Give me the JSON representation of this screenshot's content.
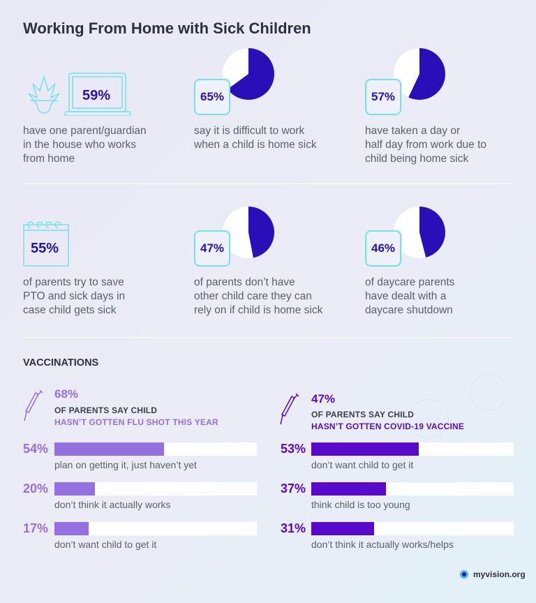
{
  "title": "Working From Home with Sick Children",
  "colors": {
    "pie_dark": "#2a0fb8",
    "flu_accent": "#9470e0",
    "covid_accent": "#5a09cc",
    "icon_outline": "#6fe3ec"
  },
  "stats": [
    {
      "value": "59%",
      "icon": "laptop-plant-icon",
      "text": [
        "have one parent/guardian",
        "in the house who works",
        "from home"
      ]
    },
    {
      "value": "65%",
      "icon": "pie-chart",
      "fraction": 0.65,
      "text": [
        "say it is difficult to work",
        "when a child is home sick"
      ]
    },
    {
      "value": "57%",
      "icon": "pie-chart",
      "fraction": 0.57,
      "text": [
        "have taken a day or",
        "half day from work due to",
        "child being home sick"
      ]
    },
    {
      "value": "55%",
      "icon": "calendar-icon",
      "text": [
        "of parents try to save",
        "PTO and sick days in",
        "case child gets sick"
      ]
    },
    {
      "value": "47%",
      "icon": "pie-chart",
      "fraction": 0.47,
      "text": [
        "of parents don’t have",
        "other child care they can",
        "rely on if child is home sick"
      ]
    },
    {
      "value": "46%",
      "icon": "pie-chart",
      "fraction": 0.46,
      "text": [
        "of daycare parents",
        "have dealt with a",
        "daycare shutdown"
      ]
    }
  ],
  "vaccinations": {
    "heading": "VACCINATIONS",
    "flu": {
      "value": "68%",
      "line1": "OF PARENTS SAY CHILD",
      "line2": "HASN’T GOTTEN FLU SHOT THIS YEAR",
      "bars": [
        {
          "value": "54%",
          "fraction": 0.54,
          "label": "plan on getting it, just haven’t yet"
        },
        {
          "value": "20%",
          "fraction": 0.2,
          "label": "don’t think it actually works"
        },
        {
          "value": "17%",
          "fraction": 0.17,
          "label": "don’t want child to get it"
        }
      ]
    },
    "covid": {
      "value": "47%",
      "line1": "OF PARENTS SAY CHILD",
      "line2": "HASN’T GOTTEN COVID-19 VACCINE",
      "bars": [
        {
          "value": "53%",
          "fraction": 0.53,
          "label": "don’t want child to get it"
        },
        {
          "value": "37%",
          "fraction": 0.37,
          "label": "think child is too young"
        },
        {
          "value": "31%",
          "fraction": 0.31,
          "label": "don’t think it actually works/helps"
        }
      ]
    }
  },
  "logo": "myvision.org",
  "chart_data": [
    {
      "type": "pie",
      "values": [
        65,
        35
      ],
      "title": ""
    },
    {
      "type": "pie",
      "values": [
        57,
        43
      ],
      "title": ""
    },
    {
      "type": "pie",
      "values": [
        47,
        53
      ],
      "title": ""
    },
    {
      "type": "pie",
      "values": [
        46,
        54
      ],
      "title": ""
    },
    {
      "type": "bar",
      "orientation": "horizontal",
      "categories": [
        "plan on getting it, just haven’t yet",
        "don’t think it actually works",
        "don’t want child to get it"
      ],
      "values": [
        54,
        20,
        17
      ],
      "xlim": [
        0,
        100
      ]
    },
    {
      "type": "bar",
      "orientation": "horizontal",
      "categories": [
        "don’t want child to get it",
        "think child is too young",
        "don’t think it actually works/helps"
      ],
      "values": [
        53,
        37,
        31
      ],
      "xlim": [
        0,
        100
      ]
    }
  ]
}
